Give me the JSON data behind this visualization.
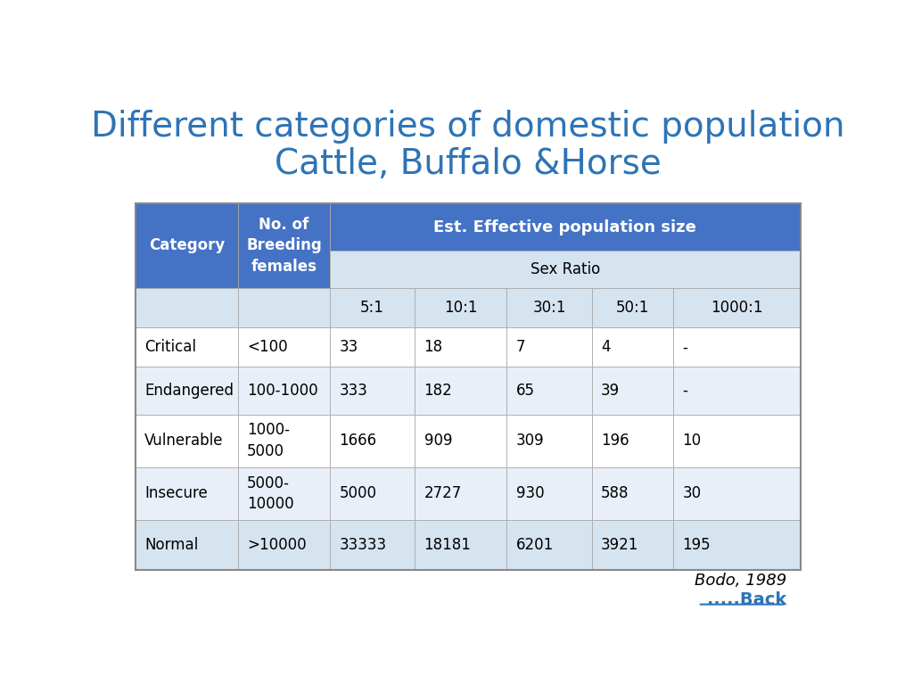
{
  "title_line1": "Different categories of domestic population",
  "title_line2": "Cattle, Buffalo &Horse",
  "title_color": "#2E74B5",
  "title_fontsize": 28,
  "header_bg_dark": "#4472C4",
  "header_bg_light": "#D6E4F0",
  "row_bg_alt": "#E8EFF8",
  "row_bg_white": "#FFFFFF",
  "row_bg_normal": "#D6E4F0",
  "header_text_color": "#FFFFFF",
  "cell_text_color": "#000000",
  "data_rows": [
    {
      "category": "Critical",
      "breeding": "<100",
      "r51": "33",
      "r101": "18",
      "r301": "7",
      "r501": "4",
      "r10001": "-",
      "bg": "#FFFFFF"
    },
    {
      "category": "Endangered",
      "breeding": "100-1000",
      "r51": "333",
      "r101": "182",
      "r301": "65",
      "r501": "39",
      "r10001": "-",
      "bg": "#E8EFF8"
    },
    {
      "category": "Vulnerable",
      "breeding": "1000-\n5000",
      "r51": "1666",
      "r101": "909",
      "r301": "309",
      "r501": "196",
      "r10001": "10",
      "bg": "#FFFFFF"
    },
    {
      "category": "Insecure",
      "breeding": "5000-\n10000",
      "r51": "5000",
      "r101": "2727",
      "r301": "930",
      "r501": "588",
      "r10001": "30",
      "bg": "#E8EFF8"
    },
    {
      "category": "Normal",
      "breeding": ">10000",
      "r51": "33333",
      "r101": "18181",
      "r301": "6201",
      "r501": "3921",
      "r10001": "195",
      "bg": "#D6E4F0"
    }
  ],
  "citation": "Bodo, 1989",
  "back_text": ".....Back",
  "back_color": "#2E74B5"
}
